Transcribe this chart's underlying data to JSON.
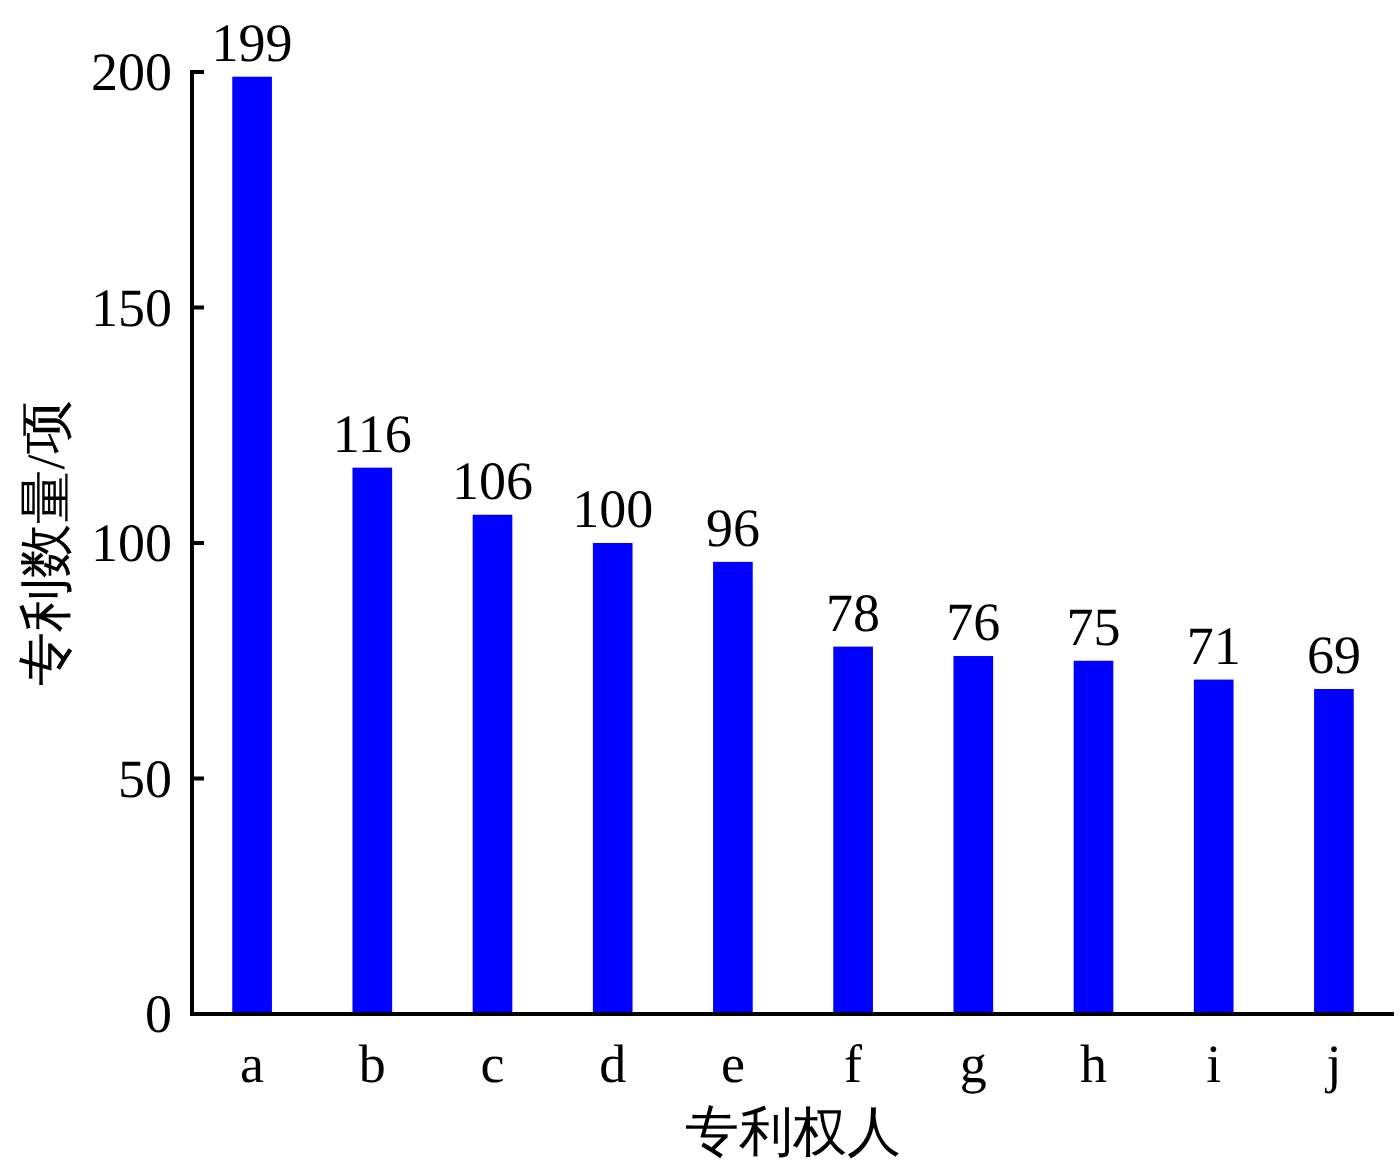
{
  "chart_data": {
    "type": "bar",
    "xlabel": "专利权人",
    "ylabel": "专利数量/项",
    "categories": [
      "a",
      "b",
      "c",
      "d",
      "e",
      "f",
      "g",
      "h",
      "i",
      "j"
    ],
    "values": [
      199,
      116,
      106,
      100,
      96,
      78,
      76,
      75,
      71,
      69
    ],
    "color": "#0000ff",
    "ylim": [
      0,
      200
    ],
    "yticks": [
      0,
      50,
      100,
      150,
      200
    ],
    "data_labels": true
  }
}
